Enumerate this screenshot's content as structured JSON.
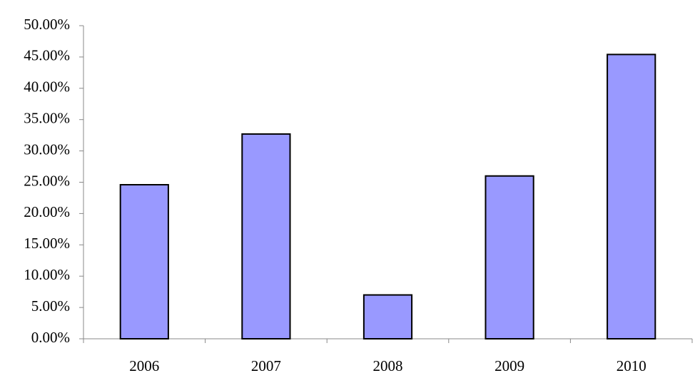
{
  "chart_data": {
    "type": "bar",
    "categories": [
      "2006",
      "2007",
      "2008",
      "2009",
      "2010"
    ],
    "values": [
      24.6,
      32.7,
      7.0,
      26.0,
      45.4
    ],
    "color": "#9999ff",
    "ylim": [
      0,
      50
    ],
    "yticks": [
      {
        "value": 0,
        "label": "0.00%"
      },
      {
        "value": 5,
        "label": "5.00%"
      },
      {
        "value": 10,
        "label": "10.00%"
      },
      {
        "value": 15,
        "label": "15.00%"
      },
      {
        "value": 20,
        "label": "20.00%"
      },
      {
        "value": 25,
        "label": "25.00%"
      },
      {
        "value": 30,
        "label": "30.00%"
      },
      {
        "value": 35,
        "label": "35.00%"
      },
      {
        "value": 40,
        "label": "40.00%"
      },
      {
        "value": 45,
        "label": "45.00%"
      },
      {
        "value": 50,
        "label": "50.00%"
      }
    ],
    "grid": false
  }
}
